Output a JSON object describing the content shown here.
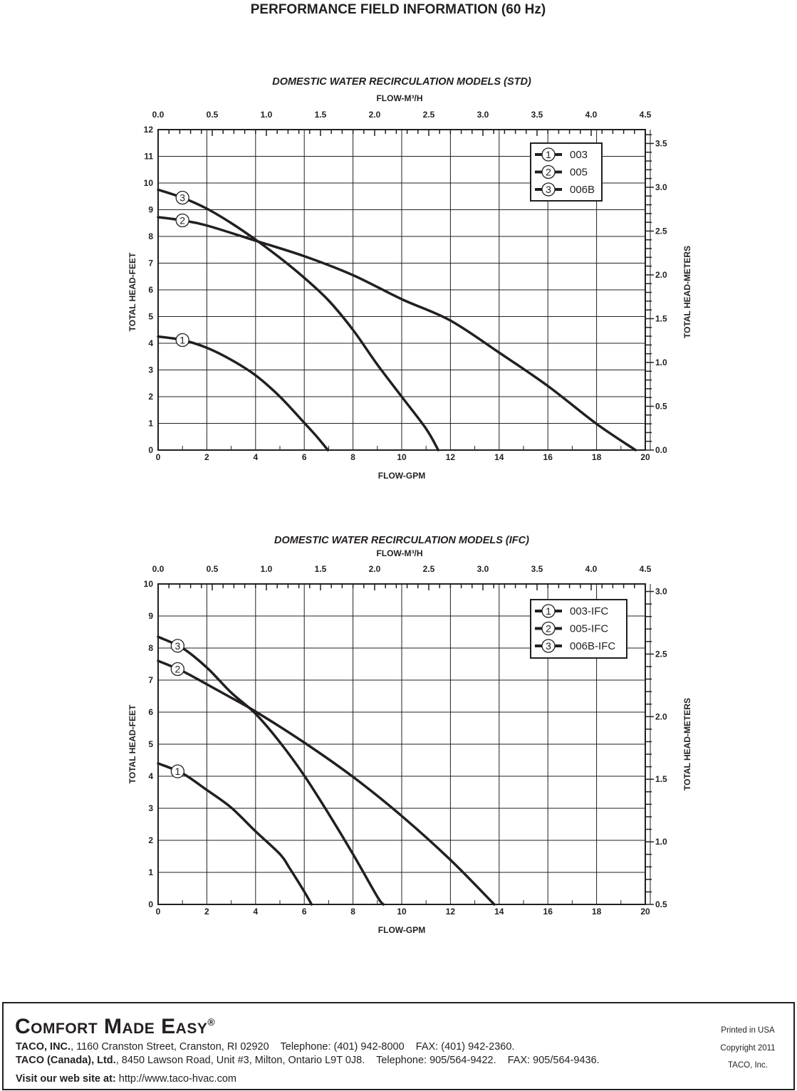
{
  "page_title": "PERFORMANCE FIELD INFORMATION (60 Hz)",
  "colors": {
    "ink": "#231f20",
    "grid": "#231f20",
    "background": "#ffffff"
  },
  "chart_data": [
    {
      "type": "line",
      "title": "DOMESTIC WATER RECIRCULATION MODELS (STD)",
      "xlabel": "FLOW-GPM",
      "x2label": "FLOW-M³/H",
      "ylabel": "TOTAL HEAD-FEET",
      "y2label": "TOTAL HEAD-METERS",
      "xlim": [
        0,
        20
      ],
      "ylim": [
        0,
        12
      ],
      "x2lim": [
        0,
        4.5
      ],
      "y2lim": [
        0,
        3.658
      ],
      "xticks": [
        "0",
        "2",
        "4",
        "6",
        "8",
        "10",
        "12",
        "14",
        "16",
        "18",
        "20"
      ],
      "yticks": [
        "0",
        "1",
        "2",
        "3",
        "4",
        "5",
        "6",
        "7",
        "8",
        "9",
        "10",
        "11",
        "12"
      ],
      "x2ticks": [
        "0.0",
        "0.5",
        "1.0",
        "1.5",
        "2.0",
        "2.5",
        "3.0",
        "3.5",
        "4.0",
        "4.5"
      ],
      "y2ticks": [
        "0.0",
        "0.5",
        "1.0",
        "1.5",
        "2.0",
        "2.5",
        "3.0",
        "3.5"
      ],
      "grid": true,
      "legend_position": "top-right",
      "series": [
        {
          "marker": "1",
          "name": "003",
          "x": [
            0,
            1,
            2,
            3,
            4,
            5,
            6,
            6.5,
            6.97
          ],
          "y": [
            4.25,
            4.12,
            3.83,
            3.38,
            2.8,
            2.0,
            1.02,
            0.52,
            0
          ]
        },
        {
          "marker": "2",
          "name": "005",
          "x": [
            0,
            1,
            2,
            4,
            6,
            8,
            10,
            12,
            14,
            16,
            18,
            19.6
          ],
          "y": [
            8.72,
            8.6,
            8.41,
            7.84,
            7.26,
            6.55,
            5.65,
            4.85,
            3.65,
            2.4,
            0.98,
            0
          ]
        },
        {
          "marker": "3",
          "name": "006B",
          "x": [
            0,
            1,
            2,
            3,
            4,
            5,
            6,
            7,
            8,
            9,
            10,
            11,
            11.5
          ],
          "y": [
            9.75,
            9.45,
            9.04,
            8.5,
            7.88,
            7.2,
            6.45,
            5.6,
            4.5,
            3.2,
            2.0,
            0.8,
            0
          ]
        }
      ]
    },
    {
      "type": "line",
      "title": "DOMESTIC WATER RECIRCULATION MODELS (IFC)",
      "xlabel": "FLOW-GPM",
      "x2label": "FLOW-M³/H",
      "ylabel": "TOTAL HEAD-FEET",
      "y2label": "TOTAL HEAD-METERS",
      "xlim": [
        0,
        20
      ],
      "ylim": [
        0,
        10
      ],
      "x2lim": [
        0,
        4.5
      ],
      "y2lim": [
        0.5,
        3.06
      ],
      "xticks": [
        "0",
        "2",
        "4",
        "6",
        "8",
        "10",
        "12",
        "14",
        "16",
        "18",
        "20"
      ],
      "yticks": [
        "0",
        "1",
        "2",
        "3",
        "4",
        "5",
        "6",
        "7",
        "8",
        "9",
        "10"
      ],
      "x2ticks": [
        "0.0",
        "0.5",
        "1.0",
        "1.5",
        "2.0",
        "2.5",
        "3.0",
        "3.5",
        "4.0",
        "4.5"
      ],
      "y2ticks": [
        "0.5",
        "1.0",
        "1.5",
        "2.0",
        "2.5",
        "3.0"
      ],
      "grid": true,
      "legend_position": "top-right",
      "series": [
        {
          "marker": "1",
          "name": "003-IFC",
          "x": [
            0,
            1,
            2,
            3,
            4,
            5,
            5.4,
            6,
            6.3
          ],
          "y": [
            4.4,
            4.09,
            3.57,
            3.02,
            2.28,
            1.57,
            1.13,
            0.4,
            0
          ]
        },
        {
          "marker": "2",
          "name": "005-IFC",
          "x": [
            0,
            1,
            2,
            3,
            4,
            6,
            8,
            10,
            12,
            13.8
          ],
          "y": [
            7.6,
            7.28,
            6.87,
            6.45,
            6.02,
            5.05,
            3.98,
            2.76,
            1.39,
            0
          ]
        },
        {
          "marker": "3",
          "name": "006B-IFC",
          "x": [
            0,
            1,
            2,
            3,
            4,
            5,
            6,
            7,
            8,
            9,
            9.25
          ],
          "y": [
            8.35,
            8.0,
            7.39,
            6.61,
            5.95,
            5.06,
            4.02,
            2.83,
            1.57,
            0.24,
            0
          ]
        }
      ]
    }
  ],
  "footer": {
    "brand": "Comfort Made Easy",
    "registered": "®",
    "line1_company": "TACO, INC.",
    "line1_rest": ", 1160 Cranston Street, Cranston, RI 02920    Telephone: (401) 942-8000    FAX: (401) 942-2360.",
    "line2_company": "TACO (Canada), Ltd.",
    "line2_rest": ", 8450 Lawson Road, Unit #3, Milton, Ontario L9T 0J8.    Telephone: 905/564-9422.    FAX: 905/564-9436.",
    "web_label": "Visit our web site at:",
    "web_url": " http://www.taco-hvac.com",
    "printed": "Printed in USA",
    "copyright": "Copyright 2011",
    "owner": "TACO, Inc."
  }
}
